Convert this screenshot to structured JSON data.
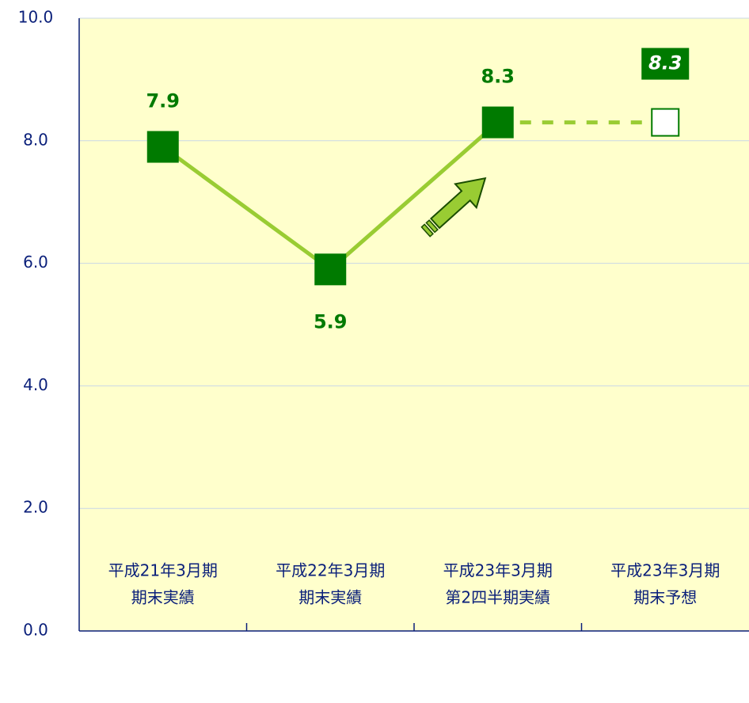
{
  "chart_data": {
    "type": "line",
    "categories": [
      [
        "平成21年3月期",
        "期末実績"
      ],
      [
        "平成22年3月期",
        "期末実績"
      ],
      [
        "平成23年3月期",
        "第2四半期実績"
      ],
      [
        "平成23年3月期",
        "期末予想"
      ]
    ],
    "series": [
      {
        "color": "#99cc33",
        "marker_color": "#007a00",
        "marker": "filled",
        "dashed": false,
        "label_style": "plain",
        "values": [
          7.9,
          5.9,
          8.3,
          null
        ]
      },
      {
        "color": "#99cc33",
        "marker_color": "#007a00",
        "marker": "hollow",
        "dashed": true,
        "label_style": "boxed",
        "values": [
          null,
          null,
          null,
          8.3
        ]
      }
    ],
    "ylim": [
      0,
      10
    ],
    "yticks": [
      {
        "value": 0,
        "label": "0.0"
      },
      {
        "value": 2,
        "label": "2.0"
      },
      {
        "value": 4,
        "label": "4.0"
      },
      {
        "value": 6,
        "label": "6.0"
      },
      {
        "value": 8,
        "label": "8.0"
      },
      {
        "value": 10,
        "label": "10.0"
      }
    ],
    "grid": true
  }
}
